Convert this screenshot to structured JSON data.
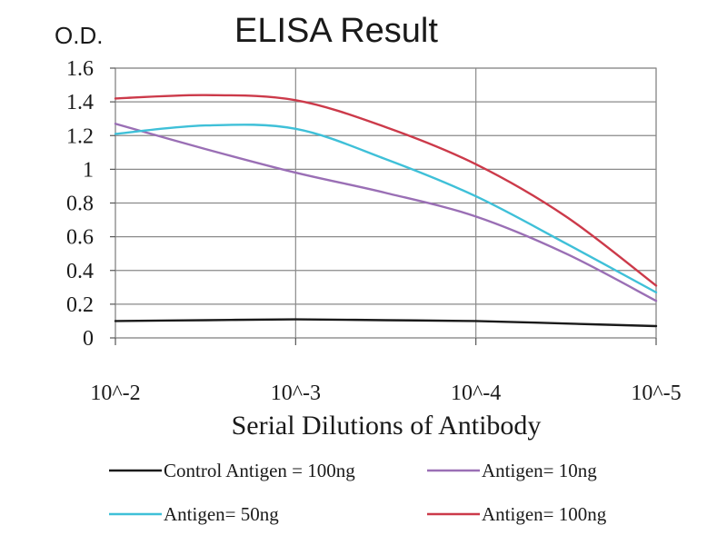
{
  "chart_data": {
    "type": "line",
    "title": "ELISA Result",
    "ylabel": "O.D.",
    "xlabel": "Serial Dilutions of Antibody",
    "x_categories": [
      "10^-2",
      "10^-3",
      "10^-4",
      "10^-5"
    ],
    "y_ticks": [
      "0",
      "0.2",
      "0.4",
      "0.6",
      "0.8",
      "1",
      "1.2",
      "1.4",
      "1.6"
    ],
    "ylim": [
      0,
      1.6
    ],
    "grid": true,
    "legend_placement": "bottom",
    "series": [
      {
        "name": "Control Antigen = 100ng",
        "color": "#1a1a1a",
        "x": [
          0,
          0.5,
          1,
          1.5,
          2,
          2.5,
          3
        ],
        "values": [
          0.1,
          0.105,
          0.11,
          0.105,
          0.1,
          0.085,
          0.07
        ]
      },
      {
        "name": "Antigen= 10ng",
        "color": "#9a6fb5",
        "x": [
          0,
          0.5,
          1,
          1.5,
          2,
          2.5,
          3
        ],
        "values": [
          1.27,
          1.12,
          0.98,
          0.86,
          0.72,
          0.5,
          0.22
        ]
      },
      {
        "name": "Antigen= 50ng",
        "color": "#3fc0d8",
        "x": [
          0,
          0.5,
          1,
          1.5,
          2,
          2.5,
          3
        ],
        "values": [
          1.21,
          1.26,
          1.24,
          1.06,
          0.84,
          0.56,
          0.27
        ]
      },
      {
        "name": "Antigen= 100ng",
        "color": "#cc3a4a",
        "x": [
          0,
          0.5,
          1,
          1.5,
          2,
          2.5,
          3
        ],
        "values": [
          1.42,
          1.44,
          1.41,
          1.25,
          1.03,
          0.72,
          0.31
        ]
      }
    ]
  }
}
